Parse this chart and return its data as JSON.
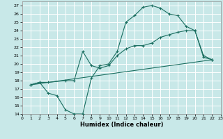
{
  "xlabel": "Humidex (Indice chaleur)",
  "bg_color": "#c8e8e8",
  "grid_color": "#ffffff",
  "line_color": "#1a6e60",
  "xlim": [
    0,
    23
  ],
  "ylim": [
    14,
    27.5
  ],
  "xticks": [
    0,
    1,
    2,
    3,
    4,
    5,
    6,
    7,
    8,
    9,
    10,
    11,
    12,
    13,
    14,
    15,
    16,
    17,
    18,
    19,
    20,
    21,
    22,
    23
  ],
  "yticks": [
    14,
    15,
    16,
    17,
    18,
    19,
    20,
    21,
    22,
    23,
    24,
    25,
    26,
    27
  ],
  "curve1_x": [
    1,
    2,
    3,
    4,
    5,
    6,
    7,
    8,
    9,
    10,
    11,
    12,
    13,
    14,
    15,
    16,
    17,
    18,
    19,
    20,
    21,
    22
  ],
  "curve1_y": [
    17.5,
    17.8,
    16.5,
    16.2,
    14.5,
    14.0,
    14.0,
    18.3,
    19.8,
    20.0,
    21.5,
    25.0,
    25.8,
    26.8,
    27.0,
    26.7,
    26.0,
    25.8,
    24.5,
    24.0,
    20.8,
    20.5
  ],
  "curve2_x": [
    1,
    2,
    3,
    5,
    6,
    7,
    8,
    9,
    10,
    11,
    12,
    13,
    14,
    15,
    16,
    17,
    18,
    19,
    20,
    21,
    22
  ],
  "curve2_y": [
    17.5,
    17.8,
    17.8,
    18.0,
    18.0,
    21.5,
    19.8,
    19.5,
    19.8,
    21.0,
    21.8,
    22.2,
    22.2,
    22.5,
    23.2,
    23.5,
    23.8,
    24.0,
    24.0,
    21.0,
    20.5
  ],
  "curve3_x": [
    1,
    22
  ],
  "curve3_y": [
    17.5,
    20.5
  ]
}
